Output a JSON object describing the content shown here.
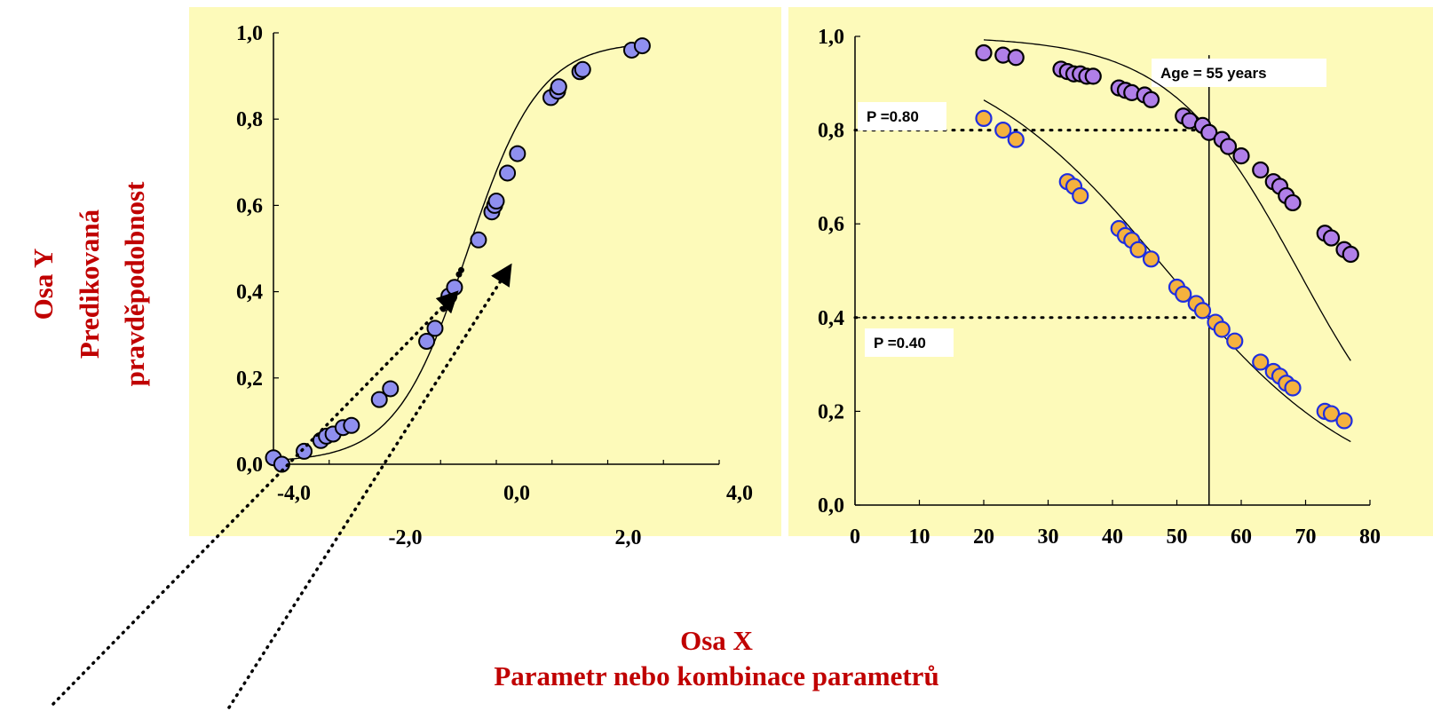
{
  "y_axis_title": [
    "Osa Y",
    "Predikovaná",
    "pravděpodobnost"
  ],
  "x_axis_title": [
    "Osa X",
    "Parametr nebo kombinace parametrů"
  ],
  "chart_data": [
    {
      "type": "scatter",
      "title": "",
      "xlim": [
        -4.0,
        4.0
      ],
      "ylim": [
        0.0,
        1.0
      ],
      "x_ticks_upper": [
        "-4,0",
        "0,0",
        "4,0"
      ],
      "x_ticks_lower": [
        "-2,0",
        "2,0"
      ],
      "y_ticks": [
        "0,0",
        "0,2",
        "0,4",
        "0,6",
        "0,8",
        "1,0"
      ],
      "curve": "logistic",
      "point_color": "#8f8fef",
      "series": [
        {
          "x": [
            -4.0,
            -3.85,
            -3.45,
            -3.15,
            -3.05,
            -2.93,
            -2.75,
            -2.6,
            -2.1,
            -1.9,
            -1.25,
            -1.1,
            -0.85,
            -0.75,
            -0.32,
            -0.08,
            -0.03,
            0.0,
            0.2,
            0.38,
            0.98,
            1.1,
            1.12,
            1.5,
            1.55,
            2.43,
            2.62
          ],
          "y": [
            0.015,
            0.0,
            0.03,
            0.055,
            0.065,
            0.07,
            0.085,
            0.09,
            0.15,
            0.175,
            0.285,
            0.315,
            0.39,
            0.41,
            0.52,
            0.585,
            0.6,
            0.61,
            0.675,
            0.72,
            0.85,
            0.865,
            0.875,
            0.91,
            0.915,
            0.96,
            0.97
          ]
        }
      ]
    },
    {
      "type": "scatter",
      "title": "",
      "xlim": [
        0,
        80
      ],
      "ylim": [
        0.0,
        1.0
      ],
      "x_ticks": [
        "0",
        "10",
        "20",
        "30",
        "40",
        "50",
        "60",
        "70",
        "80"
      ],
      "y_ticks": [
        "0,0",
        "0,2",
        "0,4",
        "0,6",
        "0,8",
        "1,0"
      ],
      "annotations": {
        "age_label": "Age = 55 years",
        "age_line_x": 55,
        "p_high_label": "P =0.80",
        "p_high": 0.8,
        "p_low_label": "P =0.40",
        "p_low": 0.4
      },
      "series": [
        {
          "color": "#b07fe8",
          "edge": "#000000",
          "x": [
            20,
            23,
            25,
            32,
            33,
            34,
            35,
            36,
            37,
            41,
            42,
            43,
            45,
            46,
            51,
            52,
            54,
            55,
            57,
            58,
            60,
            63,
            65,
            66,
            67,
            68,
            73,
            74,
            76,
            77
          ],
          "y": [
            0.965,
            0.96,
            0.955,
            0.93,
            0.925,
            0.92,
            0.92,
            0.915,
            0.915,
            0.89,
            0.885,
            0.88,
            0.875,
            0.865,
            0.83,
            0.82,
            0.81,
            0.795,
            0.78,
            0.765,
            0.745,
            0.715,
            0.69,
            0.68,
            0.66,
            0.645,
            0.58,
            0.57,
            0.545,
            0.535
          ]
        },
        {
          "color": "#f5b23e",
          "edge": "#1f2ee0",
          "x": [
            20,
            23,
            25,
            33,
            34,
            35,
            41,
            42,
            43,
            44,
            46,
            50,
            51,
            53,
            54,
            56,
            57,
            59,
            63,
            65,
            66,
            67,
            68,
            73,
            74,
            76
          ],
          "y": [
            0.825,
            0.8,
            0.78,
            0.69,
            0.68,
            0.66,
            0.59,
            0.575,
            0.565,
            0.545,
            0.525,
            0.465,
            0.45,
            0.43,
            0.415,
            0.39,
            0.375,
            0.35,
            0.305,
            0.285,
            0.275,
            0.26,
            0.25,
            0.2,
            0.195,
            0.18
          ]
        }
      ]
    }
  ]
}
